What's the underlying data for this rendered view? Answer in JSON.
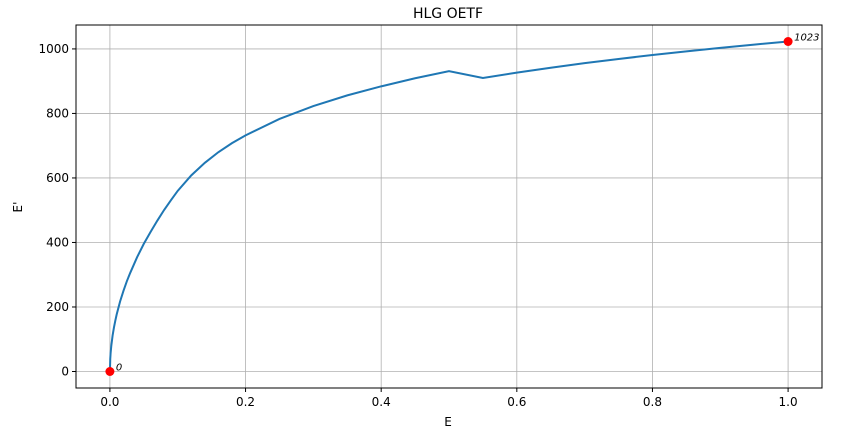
{
  "chart_data": {
    "type": "line",
    "title": "HLG OETF",
    "xlabel": "E",
    "ylabel": "E'",
    "xlim": [
      -0.05,
      1.05
    ],
    "ylim": [
      -51.15,
      1074.15
    ],
    "xticks": [
      0.0,
      0.2,
      0.4,
      0.6,
      0.8,
      1.0
    ],
    "xtick_labels": [
      "0.0",
      "0.2",
      "0.4",
      "0.6",
      "0.8",
      "1.0"
    ],
    "yticks": [
      0,
      200,
      400,
      600,
      800,
      1000
    ],
    "ytick_labels": [
      "0",
      "200",
      "400",
      "600",
      "800",
      "1000"
    ],
    "grid": true,
    "series": [
      {
        "color": "#1f77b4",
        "x": [
          0.0,
          0.0005,
          0.001,
          0.002,
          0.004,
          0.006,
          0.008,
          0.01,
          0.015,
          0.02,
          0.025,
          0.03,
          0.04,
          0.05,
          0.06,
          0.07,
          0.08,
          0.09,
          0.1,
          0.12,
          0.14,
          0.16,
          0.18,
          0.2,
          0.25,
          0.3,
          0.35,
          0.4,
          0.45,
          0.5,
          0.55,
          0.6,
          0.65,
          0.7,
          0.75,
          0.8,
          0.85,
          0.9,
          0.95,
          1.0
        ],
        "y": [
          0,
          39,
          56,
          79,
          112,
          137,
          158,
          177,
          217,
          250,
          280,
          306,
          354,
          396,
          433,
          468,
          501,
          531,
          560,
          608,
          647,
          680,
          708,
          732,
          783,
          823,
          856,
          884,
          909,
          931,
          951,
          968,
          984,
          999,
          1013,
          1026,
          1038,
          1049,
          1060,
          1023
        ]
      }
    ],
    "points": [
      {
        "x": 0.0,
        "y": 0,
        "label": "0",
        "color": "#ff0000"
      },
      {
        "x": 1.0,
        "y": 1023,
        "label": "1023",
        "color": "#ff0000"
      }
    ]
  }
}
